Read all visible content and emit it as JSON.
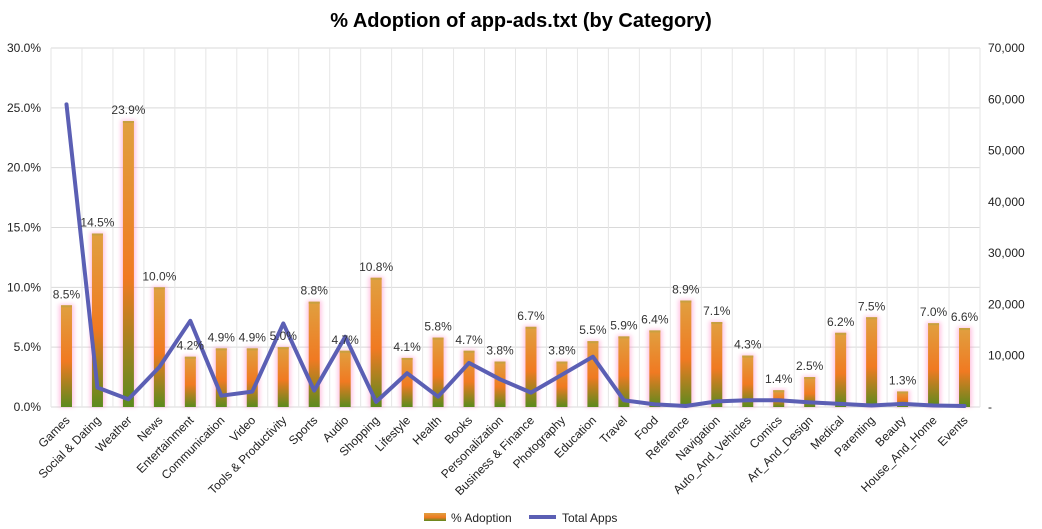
{
  "chart_data": {
    "type": "bar",
    "title": "% Adoption of app-ads.txt (by Category)",
    "categories": [
      "Games",
      "Social & Dating",
      "Weather",
      "News",
      "Entertainment",
      "Communication",
      "Video",
      "Tools & Productivity",
      "Sports",
      "Audio",
      "Shopping",
      "Lifestyle",
      "Health",
      "Books",
      "Personalization",
      "Business & Finance",
      "Photography",
      "Education",
      "Travel",
      "Food",
      "Reference",
      "Navigation",
      "Auto_And_Vehicles",
      "Comics",
      "Art_And_Design",
      "Medical",
      "Parenting",
      "Beauty",
      "House_And_Home",
      "Events"
    ],
    "series": [
      {
        "name": "% Adoption",
        "type": "bar",
        "axis": "left",
        "color": "#d98a2b",
        "values": [
          8.5,
          14.5,
          23.9,
          10.0,
          4.2,
          4.9,
          4.9,
          5.0,
          8.8,
          4.7,
          10.8,
          4.1,
          5.8,
          4.7,
          3.8,
          6.7,
          3.8,
          5.5,
          5.9,
          6.4,
          8.9,
          7.1,
          4.3,
          1.4,
          2.5,
          6.2,
          7.5,
          1.3,
          7.0,
          6.6
        ],
        "labels": [
          "8.5%",
          "14.5%",
          "23.9%",
          "10.0%",
          "4.2%",
          "4.9%",
          "4.9%",
          "5.0%",
          "8.8%",
          "4.7%",
          "10.8%",
          "4.1%",
          "5.8%",
          "4.7%",
          "3.8%",
          "6.7%",
          "3.8%",
          "5.5%",
          "5.9%",
          "6.4%",
          "8.9%",
          "7.1%",
          "4.3%",
          "1.4%",
          "2.5%",
          "6.2%",
          "7.5%",
          "1.3%",
          "7.0%",
          "6.6%"
        ]
      },
      {
        "name": "Total Apps",
        "type": "line",
        "axis": "right",
        "color": "#5b5fb4",
        "values": [
          59000,
          3800,
          1500,
          7800,
          16800,
          2200,
          3000,
          16300,
          3200,
          13700,
          1000,
          6600,
          2000,
          8600,
          5400,
          2800,
          6300,
          9800,
          1300,
          500,
          200,
          1100,
          1300,
          1300,
          900,
          600,
          300,
          600,
          300,
          200
        ]
      }
    ],
    "y_left": {
      "min": 0,
      "max": 30,
      "step": 5,
      "tick_labels": [
        "0.0%",
        "5.0%",
        "10.0%",
        "15.0%",
        "20.0%",
        "25.0%",
        "30.0%"
      ]
    },
    "y_right": {
      "min": 0,
      "max": 70000,
      "step": 10000,
      "tick_labels": [
        "-",
        "10,000",
        "20,000",
        "30,000",
        "40,000",
        "50,000",
        "60,000",
        "70,000"
      ]
    },
    "grid": true,
    "legend_position": "bottom-center",
    "legend": [
      "% Adoption",
      "Total Apps"
    ]
  }
}
